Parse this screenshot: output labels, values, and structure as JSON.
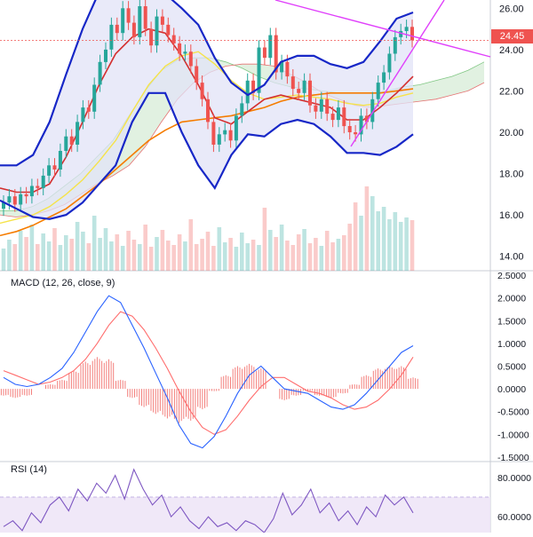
{
  "colors": {
    "up": "#26a69a",
    "down": "#ef5350",
    "bollinger": "#1727c7",
    "bollinger_fill": "#e1e3f7",
    "ema_fast": "#d32f2f",
    "ema_slow": "#f57c00",
    "sma_yellow": "#f5e34a",
    "cloud_up": "#c8e6c9",
    "cloud_down": "#ffcdd2",
    "trendline": "#e040fb",
    "macd_line": "#2962ff",
    "signal_line": "#ff6d6d",
    "rsi_line": "#7e57c2",
    "rsi_band": "#ede4f7"
  },
  "panes": {
    "macd_label": "MACD (12, 26, close, 9)",
    "rsi_label": "RSI (14)",
    "last_price_label": "24.45"
  },
  "chart_data": [
    {
      "type": "line",
      "pane": "price",
      "ylim": [
        13.3,
        26.4
      ],
      "yticks": [
        "26.00",
        "24.00",
        "22.00",
        "20.00",
        "18.00",
        "16.00",
        "14.00"
      ],
      "ytick_values": [
        26,
        24,
        22,
        20,
        18,
        16,
        14
      ],
      "last_price": 24.45,
      "series": [
        {
          "role": "bollinger_upper",
          "values": [
            18.4,
            18.4,
            18.9,
            20.5,
            22.8,
            25.0,
            26.8,
            27.0,
            26.8,
            26.6,
            26.7,
            26.0,
            25.2,
            23.6,
            22.4,
            21.8,
            22.3,
            23.4,
            23.7,
            23.7,
            23.3,
            23.1,
            23.4,
            24.4,
            25.5,
            25.8
          ]
        },
        {
          "role": "bollinger_lower",
          "values": [
            16.7,
            16.3,
            15.9,
            15.8,
            16.0,
            16.6,
            17.5,
            18.4,
            20.5,
            21.9,
            21.9,
            20.0,
            18.4,
            17.3,
            18.9,
            19.9,
            19.8,
            20.4,
            20.6,
            20.4,
            19.8,
            19.0,
            19.0,
            18.9,
            19.3,
            19.9
          ]
        },
        {
          "role": "bollinger_middle",
          "values": [
            17.3,
            17.1,
            17.1,
            17.5,
            18.8,
            20.5,
            22.3,
            23.8,
            24.6,
            25.0,
            24.8,
            23.7,
            22.3,
            20.7,
            20.4,
            21.0,
            21.6,
            21.8,
            21.6,
            21.4,
            21.2,
            20.6,
            20.6,
            21.2,
            21.9,
            22.7
          ]
        },
        {
          "role": "sma",
          "values": [
            15.6,
            15.8,
            16.0,
            16.4,
            17.0,
            17.7,
            18.6,
            19.6,
            21.0,
            22.3,
            23.2,
            23.7,
            23.9,
            23.3,
            22.5,
            21.9,
            21.6,
            21.7,
            21.8,
            21.7,
            21.6,
            21.4,
            21.3,
            21.4,
            21.7,
            21.9
          ]
        },
        {
          "role": "ema_slow",
          "values": [
            15.0,
            15.2,
            15.5,
            15.9,
            16.3,
            16.9,
            17.5,
            18.2,
            18.9,
            19.6,
            20.1,
            20.5,
            20.6,
            20.7,
            20.8,
            21.0,
            21.2,
            21.5,
            21.7,
            21.8,
            21.9,
            21.9,
            21.9,
            21.9,
            22.0,
            22.1
          ]
        },
        {
          "role": "cloud_a",
          "values": [
            16.2,
            16.2,
            16.4,
            16.8,
            17.4,
            18.0,
            18.8,
            19.6,
            20.8,
            22.0,
            23.0,
            23.5,
            23.6,
            23.6,
            23.4,
            23.1,
            22.7,
            22.4,
            22.2,
            22.1,
            22.0,
            21.9,
            21.9,
            21.9,
            22.0,
            22.2,
            22.3,
            22.5,
            22.7,
            23.0,
            23.4
          ]
        },
        {
          "role": "cloud_b",
          "values": [
            16.0,
            15.9,
            16.0,
            16.2,
            16.5,
            17.0,
            17.5,
            17.9,
            18.4,
            19.3,
            20.5,
            21.6,
            22.4,
            22.9,
            23.2,
            23.3,
            23.3,
            23.2,
            22.8,
            22.4,
            21.9,
            21.6,
            21.3,
            21.2,
            21.3,
            21.4,
            21.5,
            21.6,
            21.8,
            22.0,
            22.4
          ]
        }
      ],
      "candles_close": [
        16.6,
        16.9,
        16.5,
        17.0,
        16.9,
        17.4,
        17.3,
        17.9,
        18.4,
        18.2,
        19.1,
        19.8,
        19.4,
        20.5,
        21.2,
        21.0,
        22.3,
        23.4,
        24.0,
        25.2,
        24.8,
        26.0,
        25.3,
        24.6,
        26.1,
        25.0,
        24.2,
        25.6,
        25.2,
        24.7,
        24.3,
        23.8,
        23.9,
        23.2,
        22.4,
        21.6,
        20.5,
        19.4,
        19.9,
        20.1,
        19.6,
        20.8,
        21.4,
        22.5,
        21.9,
        24.1,
        23.6,
        24.7,
        22.9,
        23.4,
        22.7,
        22.1,
        21.9,
        22.5,
        21.3,
        21.0,
        21.6,
        20.9,
        20.6,
        21.2,
        20.3,
        20.0,
        19.9,
        20.8,
        20.5,
        21.6,
        22.4,
        22.9,
        23.8,
        24.6,
        24.9,
        25.1,
        24.45
      ],
      "volume": [
        0.25,
        0.35,
        0.3,
        0.45,
        0.38,
        0.52,
        0.3,
        0.42,
        0.33,
        0.48,
        0.29,
        0.4,
        0.36,
        0.55,
        0.44,
        0.31,
        0.62,
        0.37,
        0.48,
        0.33,
        0.41,
        0.28,
        0.45,
        0.35,
        0.3,
        0.52,
        0.27,
        0.38,
        0.46,
        0.34,
        0.29,
        0.41,
        0.33,
        0.58,
        0.3,
        0.36,
        0.44,
        0.28,
        0.49,
        0.32,
        0.37,
        0.27,
        0.43,
        0.31,
        0.35,
        0.29,
        0.71,
        0.46,
        0.38,
        0.52,
        0.34,
        0.29,
        0.41,
        0.47,
        0.31,
        0.37,
        0.28,
        0.45,
        0.32,
        0.36,
        0.4,
        0.53,
        0.77,
        0.62,
        0.95,
        0.84,
        0.67,
        0.72,
        0.58,
        0.66,
        0.55,
        0.6,
        0.57
      ]
    },
    {
      "type": "line",
      "pane": "macd",
      "title": "MACD (12, 26, close, 9)",
      "ylim": [
        -1.6,
        2.6
      ],
      "yticks": [
        "2.5000",
        "2.0000",
        "1.5000",
        "1.0000",
        "0.5000",
        "0.0000",
        "-0.5000",
        "-1.0000",
        "-1.5000"
      ],
      "ytick_values": [
        2.5,
        2.0,
        1.5,
        1.0,
        0.5,
        0.0,
        -0.5,
        -1.0,
        -1.5
      ],
      "series": [
        {
          "role": "macd",
          "values": [
            0.25,
            0.1,
            0.05,
            0.1,
            0.25,
            0.45,
            0.8,
            1.25,
            1.7,
            2.05,
            1.9,
            1.4,
            0.9,
            0.35,
            -0.2,
            -0.8,
            -1.2,
            -1.3,
            -1.05,
            -0.6,
            -0.1,
            0.3,
            0.5,
            0.25,
            0.0,
            -0.05,
            -0.1,
            -0.25,
            -0.4,
            -0.45,
            -0.35,
            -0.1,
            0.2,
            0.5,
            0.8,
            0.95
          ]
        },
        {
          "role": "signal",
          "values": [
            0.4,
            0.3,
            0.2,
            0.1,
            0.15,
            0.25,
            0.4,
            0.65,
            1.0,
            1.4,
            1.7,
            1.6,
            1.3,
            0.9,
            0.45,
            -0.05,
            -0.5,
            -0.85,
            -1.0,
            -0.9,
            -0.6,
            -0.25,
            0.05,
            0.25,
            0.25,
            0.1,
            -0.05,
            -0.1,
            -0.2,
            -0.35,
            -0.45,
            -0.4,
            -0.25,
            0.0,
            0.3,
            0.7
          ]
        }
      ],
      "histogram": [
        -0.15,
        -0.2,
        -0.15,
        0.0,
        0.1,
        0.2,
        0.4,
        0.6,
        0.7,
        0.65,
        0.2,
        -0.2,
        -0.4,
        -0.55,
        -0.65,
        -0.75,
        -0.7,
        -0.45,
        -0.05,
        0.3,
        0.5,
        0.55,
        0.45,
        0.0,
        -0.25,
        -0.15,
        -0.05,
        -0.15,
        -0.2,
        -0.1,
        0.1,
        0.3,
        0.45,
        0.5,
        0.5,
        0.25
      ]
    },
    {
      "type": "line",
      "pane": "rsi",
      "title": "RSI (14)",
      "ylim": [
        52,
        88
      ],
      "yticks": [
        "80.0000",
        "60.0000"
      ],
      "ytick_values": [
        80,
        60
      ],
      "band": [
        30,
        70
      ],
      "series": [
        {
          "role": "rsi",
          "values": [
            55,
            58,
            53,
            62,
            57,
            66,
            70,
            63,
            74,
            68,
            77,
            72,
            81,
            69,
            84,
            74,
            66,
            71,
            60,
            65,
            58,
            54,
            60,
            55,
            57,
            53,
            58,
            56,
            52,
            59,
            72,
            61,
            66,
            74,
            62,
            67,
            58,
            63,
            56,
            65,
            60,
            71,
            66,
            70,
            62
          ]
        }
      ]
    }
  ]
}
